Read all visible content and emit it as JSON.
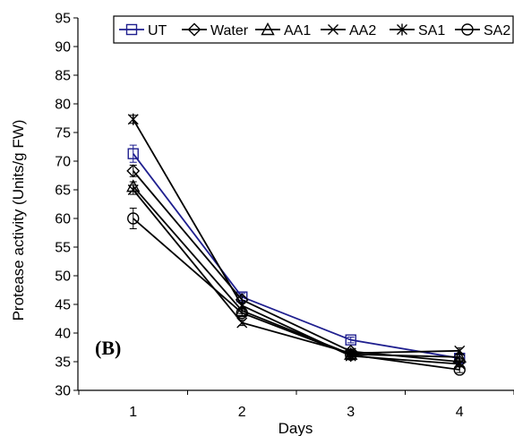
{
  "chart_data": {
    "type": "line",
    "panel_label": "(B)",
    "xlabel": "Days",
    "ylabel": "Protease activity (Units/g FW)",
    "x": [
      1,
      2,
      3,
      4
    ],
    "x_tick_labels": [
      "1",
      "2",
      "3",
      "4"
    ],
    "ylim": [
      30,
      95
    ],
    "y_ticks": [
      30,
      35,
      40,
      45,
      50,
      55,
      60,
      65,
      70,
      75,
      80,
      85,
      90,
      95
    ],
    "grid": false,
    "legend_position": "top",
    "series": [
      {
        "name": "UT",
        "marker": "square",
        "color": "#1f1f8f",
        "values": [
          71.3,
          46.3,
          38.8,
          35.6
        ],
        "errors": [
          1.5,
          0.6,
          0.5,
          0.6
        ]
      },
      {
        "name": "Water",
        "marker": "diamond",
        "color": "#000000",
        "values": [
          68.3,
          45.8,
          36.8,
          35.0
        ],
        "errors": [
          1.0,
          0.6,
          0.4,
          0.5
        ]
      },
      {
        "name": "AA1",
        "marker": "triangle",
        "color": "#000000",
        "values": [
          65.6,
          43.9,
          36.3,
          35.8
        ],
        "errors": [
          0.8,
          0.5,
          0.4,
          0.5
        ]
      },
      {
        "name": "AA2",
        "marker": "x",
        "color": "#000000",
        "values": [
          65.0,
          41.8,
          36.5,
          36.9
        ],
        "errors": [
          0.8,
          0.5,
          0.4,
          0.5
        ]
      },
      {
        "name": "SA1",
        "marker": "asterisk",
        "color": "#000000",
        "values": [
          77.3,
          44.8,
          36.0,
          34.6
        ],
        "errors": [
          0.7,
          0.5,
          0.4,
          0.5
        ]
      },
      {
        "name": "SA2",
        "marker": "circle",
        "color": "#000000",
        "values": [
          60.0,
          43.5,
          36.2,
          33.6
        ],
        "errors": [
          1.8,
          0.6,
          0.4,
          0.5
        ]
      }
    ]
  }
}
